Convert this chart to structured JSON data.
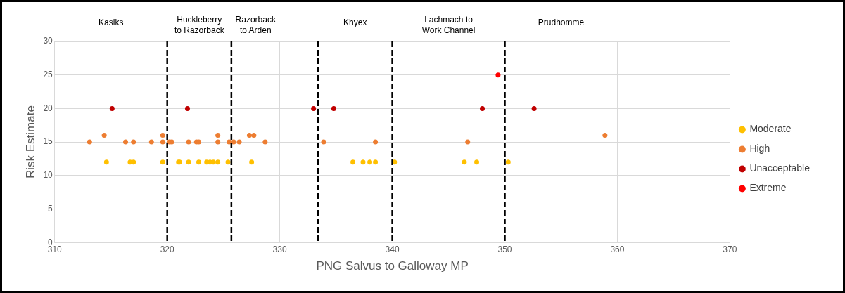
{
  "chart_data": {
    "type": "scatter",
    "xlabel": "PNG Salvus to Galloway MP",
    "ylabel": "Risk Estimate",
    "xlim": [
      310,
      370
    ],
    "xticks": [
      310,
      320,
      330,
      340,
      350,
      360,
      370
    ],
    "ylim": [
      0,
      30
    ],
    "yticks": [
      0,
      5,
      10,
      15,
      20,
      25,
      30
    ],
    "grid": true,
    "legend": "right",
    "marker": "circle",
    "series": [
      {
        "name": "Moderate",
        "color": "#ffc000",
        "x": [
          314.6,
          316.7,
          317.0,
          319.6,
          321.0,
          321.1,
          321.9,
          322.8,
          323.5,
          323.8,
          324.1,
          324.5,
          325.4,
          327.5,
          336.5,
          337.4,
          338.0,
          338.5,
          340.2,
          346.4,
          347.5,
          350.3
        ],
        "values": [
          12,
          12,
          12,
          12,
          12,
          12,
          12,
          12,
          12,
          12,
          12,
          12,
          12,
          12,
          12,
          12,
          12,
          12,
          12,
          12,
          12,
          12
        ]
      },
      {
        "name": "High",
        "color": "#ed7d31",
        "x": [
          313.1,
          314.4,
          316.3,
          317.0,
          318.6,
          319.6,
          319.6,
          320.2,
          320.4,
          321.9,
          322.6,
          322.8,
          324.5,
          324.5,
          325.5,
          325.9,
          326.4,
          327.3,
          327.7,
          328.7,
          333.9,
          338.5,
          346.7,
          358.9
        ],
        "values": [
          15,
          16,
          15,
          15,
          15,
          16,
          15,
          15,
          15,
          15,
          15,
          15,
          16,
          15,
          15,
          15,
          15,
          16,
          16,
          15,
          15,
          15,
          15,
          16
        ]
      },
      {
        "name": "Unacceptable",
        "color": "#c00000",
        "x": [
          315.1,
          321.8,
          333.0,
          334.8,
          348.0,
          352.6
        ],
        "values": [
          20,
          20,
          20,
          20,
          20,
          20
        ]
      },
      {
        "name": "Extreme",
        "color": "#ff0000",
        "x": [
          349.4
        ],
        "values": [
          25
        ]
      }
    ],
    "ref_lines": [
      {
        "axis": "x",
        "value": 320,
        "color": "#000000",
        "line_style": "dashed"
      },
      {
        "axis": "x",
        "value": 325.7,
        "color": "#000000",
        "line_style": "dashed"
      },
      {
        "axis": "x",
        "value": 333.4,
        "color": "#000000",
        "line_style": "dashed"
      },
      {
        "axis": "x",
        "value": 340,
        "color": "#000000",
        "line_style": "dashed"
      },
      {
        "axis": "x",
        "value": 350,
        "color": "#000000",
        "line_style": "dashed"
      }
    ],
    "annotations": [
      "Kasiks",
      "Huckleberry\nto Razorback",
      "Razorback\nto Arden",
      "Khyex",
      "Lachmach to\nWork Channel",
      "Prudhomme"
    ]
  }
}
